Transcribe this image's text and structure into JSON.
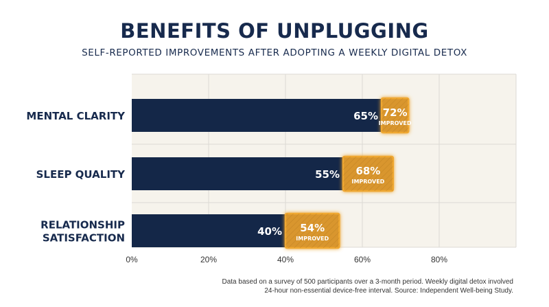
{
  "title": "BENEFITS OF UNPLUGGING",
  "subtitle": "SELF-REPORTED IMPROVEMENTS AFTER ADOPTING A WEEKLY DIGITAL DETOX",
  "footnote": "Data based on a survey of 500 participants over a 3-month period. Weekly digital detox involved 24-hour non-essential device-free interval. Source: Independent Well-being Study.",
  "colors": {
    "base_bar": "#142748",
    "improved_bar": "#d9962f",
    "improved_border": "#f0a830",
    "plot_background": "#f6f3ec",
    "grid": "#dcdad4"
  },
  "chart_data": {
    "type": "bar",
    "orientation": "horizontal",
    "categories": [
      [
        "MENTAL CLARITY"
      ],
      [
        "SLEEP QUALITY"
      ],
      [
        "RELATIONSHIP",
        "SATISFACTION"
      ]
    ],
    "series": [
      {
        "values": [
          65,
          55,
          40
        ],
        "labels": [
          "65%",
          "55%",
          "40%"
        ]
      },
      {
        "values": [
          72,
          68,
          54
        ],
        "labels": [
          "72%",
          "68%",
          "54%"
        ]
      }
    ],
    "improved_tag": "IMPROVED",
    "xlim": [
      0,
      100
    ],
    "xticks": [
      0,
      20,
      40,
      60,
      80
    ],
    "xtick_labels": [
      "0%",
      "20%",
      "40%",
      "60%",
      "80%"
    ],
    "grid": true
  }
}
